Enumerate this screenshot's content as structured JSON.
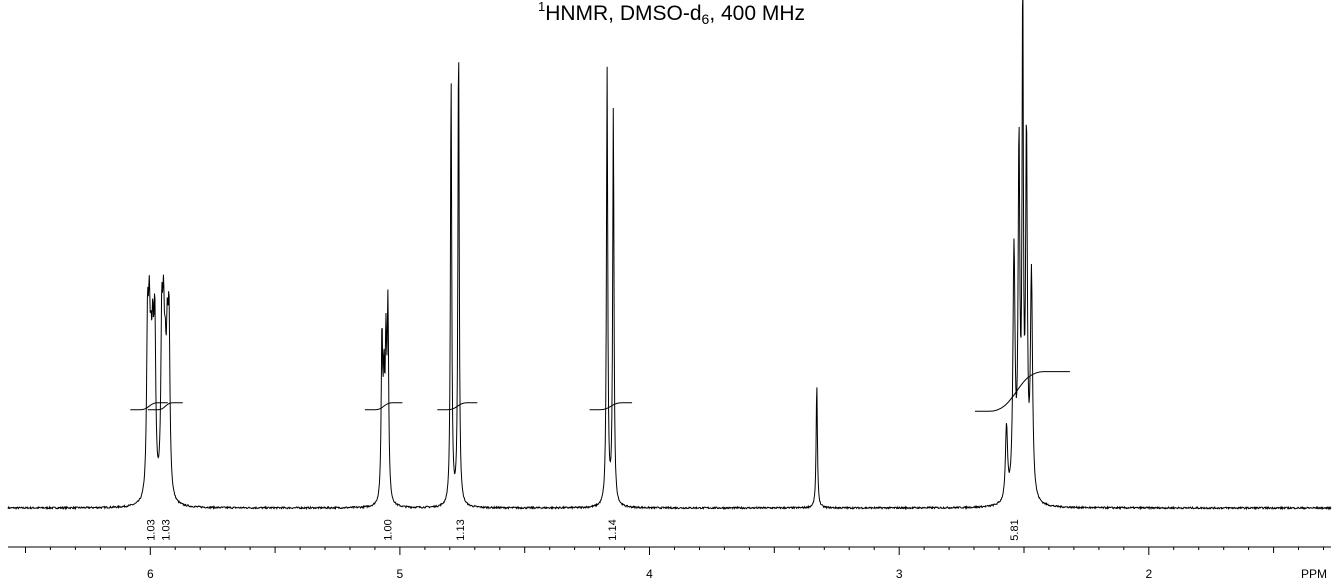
{
  "title": {
    "sup": "1",
    "main": "HNMR, DMSO-d",
    "sub": "6",
    "rest": ", 400 MHz"
  },
  "chart_data": {
    "type": "line",
    "title": "1HNMR, DMSO-d6, 400 MHz",
    "xlabel": "PPM",
    "ylabel": "",
    "xlim": [
      6.57,
      1.27
    ],
    "ylim": [
      0,
      100
    ],
    "x_reversed": true,
    "grid": false,
    "x_ticks": [
      6,
      5,
      4,
      3,
      2
    ],
    "x_tick_labels": [
      "6",
      "5",
      "4",
      "3",
      "2"
    ],
    "peaks": [
      {
        "ppm": 6.0,
        "height": 33,
        "width": 0.028,
        "lines": [
          -0.018,
          -0.01,
          -0.003,
          0.004,
          0.011
        ]
      },
      {
        "ppm": 5.94,
        "height": 33,
        "width": 0.028,
        "lines": [
          -0.015,
          -0.008,
          0.0,
          0.007,
          0.014
        ]
      },
      {
        "ppm": 5.06,
        "height": 38,
        "width": 0.022,
        "lines": [
          -0.012,
          -0.004,
          0.004,
          0.012
        ]
      },
      {
        "ppm": 4.795,
        "height": 87,
        "width": 0.006
      },
      {
        "ppm": 4.765,
        "height": 95,
        "width": 0.006
      },
      {
        "ppm": 4.17,
        "height": 88,
        "width": 0.006
      },
      {
        "ppm": 4.145,
        "height": 80,
        "width": 0.006
      },
      {
        "ppm": 3.33,
        "height": 25,
        "width": 0.006
      },
      {
        "ppm": 2.57,
        "height": 15,
        "width": 0.01
      },
      {
        "ppm": 2.54,
        "height": 50,
        "width": 0.01
      },
      {
        "ppm": 2.52,
        "height": 70,
        "width": 0.008
      },
      {
        "ppm": 2.505,
        "height": 100,
        "width": 0.006
      },
      {
        "ppm": 2.49,
        "height": 72,
        "width": 0.008
      },
      {
        "ppm": 2.47,
        "height": 45,
        "width": 0.01
      }
    ],
    "integrals": [
      {
        "value": "1.03",
        "from": 6.04,
        "to": 5.97,
        "label_ppm": 6.0
      },
      {
        "value": "1.03",
        "from": 5.97,
        "to": 5.91,
        "label_ppm": 5.94
      },
      {
        "value": "1.00",
        "from": 5.1,
        "to": 5.03,
        "label_ppm": 5.05
      },
      {
        "value": "1.13",
        "from": 4.81,
        "to": 4.73,
        "label_ppm": 4.76
      },
      {
        "value": "1.14",
        "from": 4.2,
        "to": 4.11,
        "label_ppm": 4.15
      },
      {
        "value": "5.81",
        "from": 2.64,
        "to": 2.42,
        "label_ppm": 2.54
      }
    ]
  },
  "colors": {
    "line": "#000000",
    "background": "#ffffff"
  }
}
